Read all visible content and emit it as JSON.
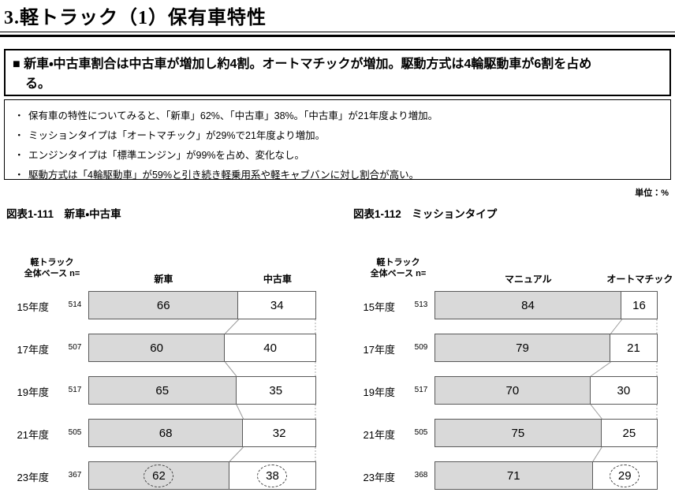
{
  "page": {
    "title": "3.軽トラック（1）保有車特性",
    "unit_label": "単位：%"
  },
  "summary": {
    "headline_lines": [
      "■ 新車・中古車割合は中古車が増加し約4割。オートマチックが増加。駆動方式は4輪駆動車が6割を占め",
      "る。"
    ],
    "bullet_char": "・",
    "bullets": [
      "保有車の特性についてみると、「新車」62%、「中古車」38%。「中古車」が21年度より増加。",
      "ミッションタイプは「オートマチック」が29%で21年度より増加。",
      "エンジンタイプは「標準エンジン」が99%を占め、変化なし。",
      "駆動方式は「4輪駆動車」が59%と引き続き軽乗用系や軽キャブバンに対し割合が高い。"
    ]
  },
  "chart_data": [
    {
      "type": "bar",
      "title": "図表1-111　新車・中古車",
      "base_label": [
        "軽トラック",
        "全体ベース n="
      ],
      "categories": [
        "15年度",
        "17年度",
        "19年度",
        "21年度",
        "23年度"
      ],
      "n_values": [
        "514",
        "507",
        "517",
        "505",
        "367"
      ],
      "series": [
        {
          "name": "新車",
          "values": [
            66,
            60,
            65,
            68,
            62
          ]
        },
        {
          "name": "中古車",
          "values": [
            34,
            40,
            35,
            32,
            38
          ]
        }
      ],
      "circled": {
        "row": 4,
        "series": [
          0,
          1
        ]
      },
      "xlim": [
        0,
        100
      ],
      "unit": "%",
      "orientation": "horizontal-stacked"
    },
    {
      "type": "bar",
      "title": "図表1-112　ミッションタイプ",
      "base_label": [
        "軽トラック",
        "全体ベース n="
      ],
      "categories": [
        "15年度",
        "17年度",
        "19年度",
        "21年度",
        "23年度"
      ],
      "n_values": [
        "513",
        "509",
        "517",
        "505",
        "368"
      ],
      "series": [
        {
          "name": "マニュアル",
          "values": [
            84,
            79,
            70,
            75,
            71
          ]
        },
        {
          "name": "オートマチック",
          "values": [
            16,
            21,
            30,
            25,
            29
          ]
        }
      ],
      "circled": {
        "row": 4,
        "series": [
          1
        ]
      },
      "xlim": [
        0,
        100
      ],
      "unit": "%",
      "orientation": "horizontal-stacked"
    }
  ],
  "colors": {
    "bar_fill": "#d9d9d9",
    "bar_white": "#ffffff",
    "bar_border": "#595959",
    "connector": "#9a9a9a",
    "edge_dotted": "#aaaaaa",
    "text": "#000000"
  }
}
